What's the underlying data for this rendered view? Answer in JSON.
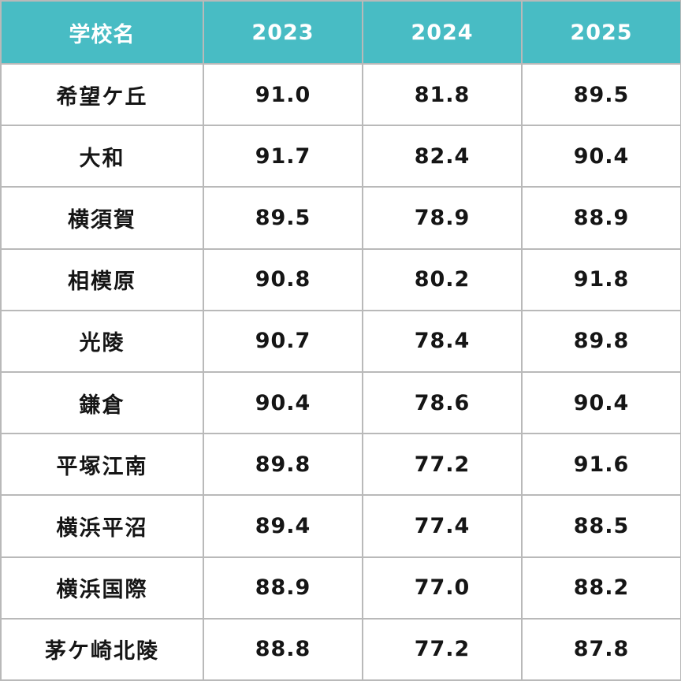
{
  "colors": {
    "header_bg": "#48bcc4",
    "header_text": "#ffffff",
    "border": "#b9b9b9",
    "body_text": "#151515"
  },
  "table": {
    "header": {
      "school_label": "学校名",
      "years": [
        "2023",
        "2024",
        "2025"
      ]
    },
    "rows": [
      {
        "school": "希望ケ丘",
        "values": [
          "91.0",
          "81.8",
          "89.5"
        ]
      },
      {
        "school": "大和",
        "values": [
          "91.7",
          "82.4",
          "90.4"
        ]
      },
      {
        "school": "横須賀",
        "values": [
          "89.5",
          "78.9",
          "88.9"
        ]
      },
      {
        "school": "相模原",
        "values": [
          "90.8",
          "80.2",
          "91.8"
        ]
      },
      {
        "school": "光陵",
        "values": [
          "90.7",
          "78.4",
          "89.8"
        ]
      },
      {
        "school": "鎌倉",
        "values": [
          "90.4",
          "78.6",
          "90.4"
        ]
      },
      {
        "school": "平塚江南",
        "values": [
          "89.8",
          "77.2",
          "91.6"
        ]
      },
      {
        "school": "横浜平沼",
        "values": [
          "89.4",
          "77.4",
          "88.5"
        ]
      },
      {
        "school": "横浜国際",
        "values": [
          "88.9",
          "77.0",
          "88.2"
        ]
      },
      {
        "school": "茅ケ崎北陵",
        "values": [
          "88.8",
          "77.2",
          "87.8"
        ]
      }
    ]
  },
  "chart_data": {
    "type": "table",
    "title": "",
    "categories": [
      "希望ケ丘",
      "大和",
      "横須賀",
      "相模原",
      "光陵",
      "鎌倉",
      "平塚江南",
      "横浜平沼",
      "横浜国際",
      "茅ケ崎北陵"
    ],
    "category_header": "学校名",
    "series": [
      {
        "name": "2023",
        "values": [
          91.0,
          91.7,
          89.5,
          90.8,
          90.7,
          90.4,
          89.8,
          89.4,
          88.9,
          88.8
        ]
      },
      {
        "name": "2024",
        "values": [
          81.8,
          82.4,
          78.9,
          80.2,
          78.4,
          78.6,
          77.2,
          77.4,
          77.0,
          77.2
        ]
      },
      {
        "name": "2025",
        "values": [
          89.5,
          90.4,
          88.9,
          91.8,
          89.8,
          90.4,
          91.6,
          88.5,
          88.2,
          87.8
        ]
      }
    ]
  }
}
